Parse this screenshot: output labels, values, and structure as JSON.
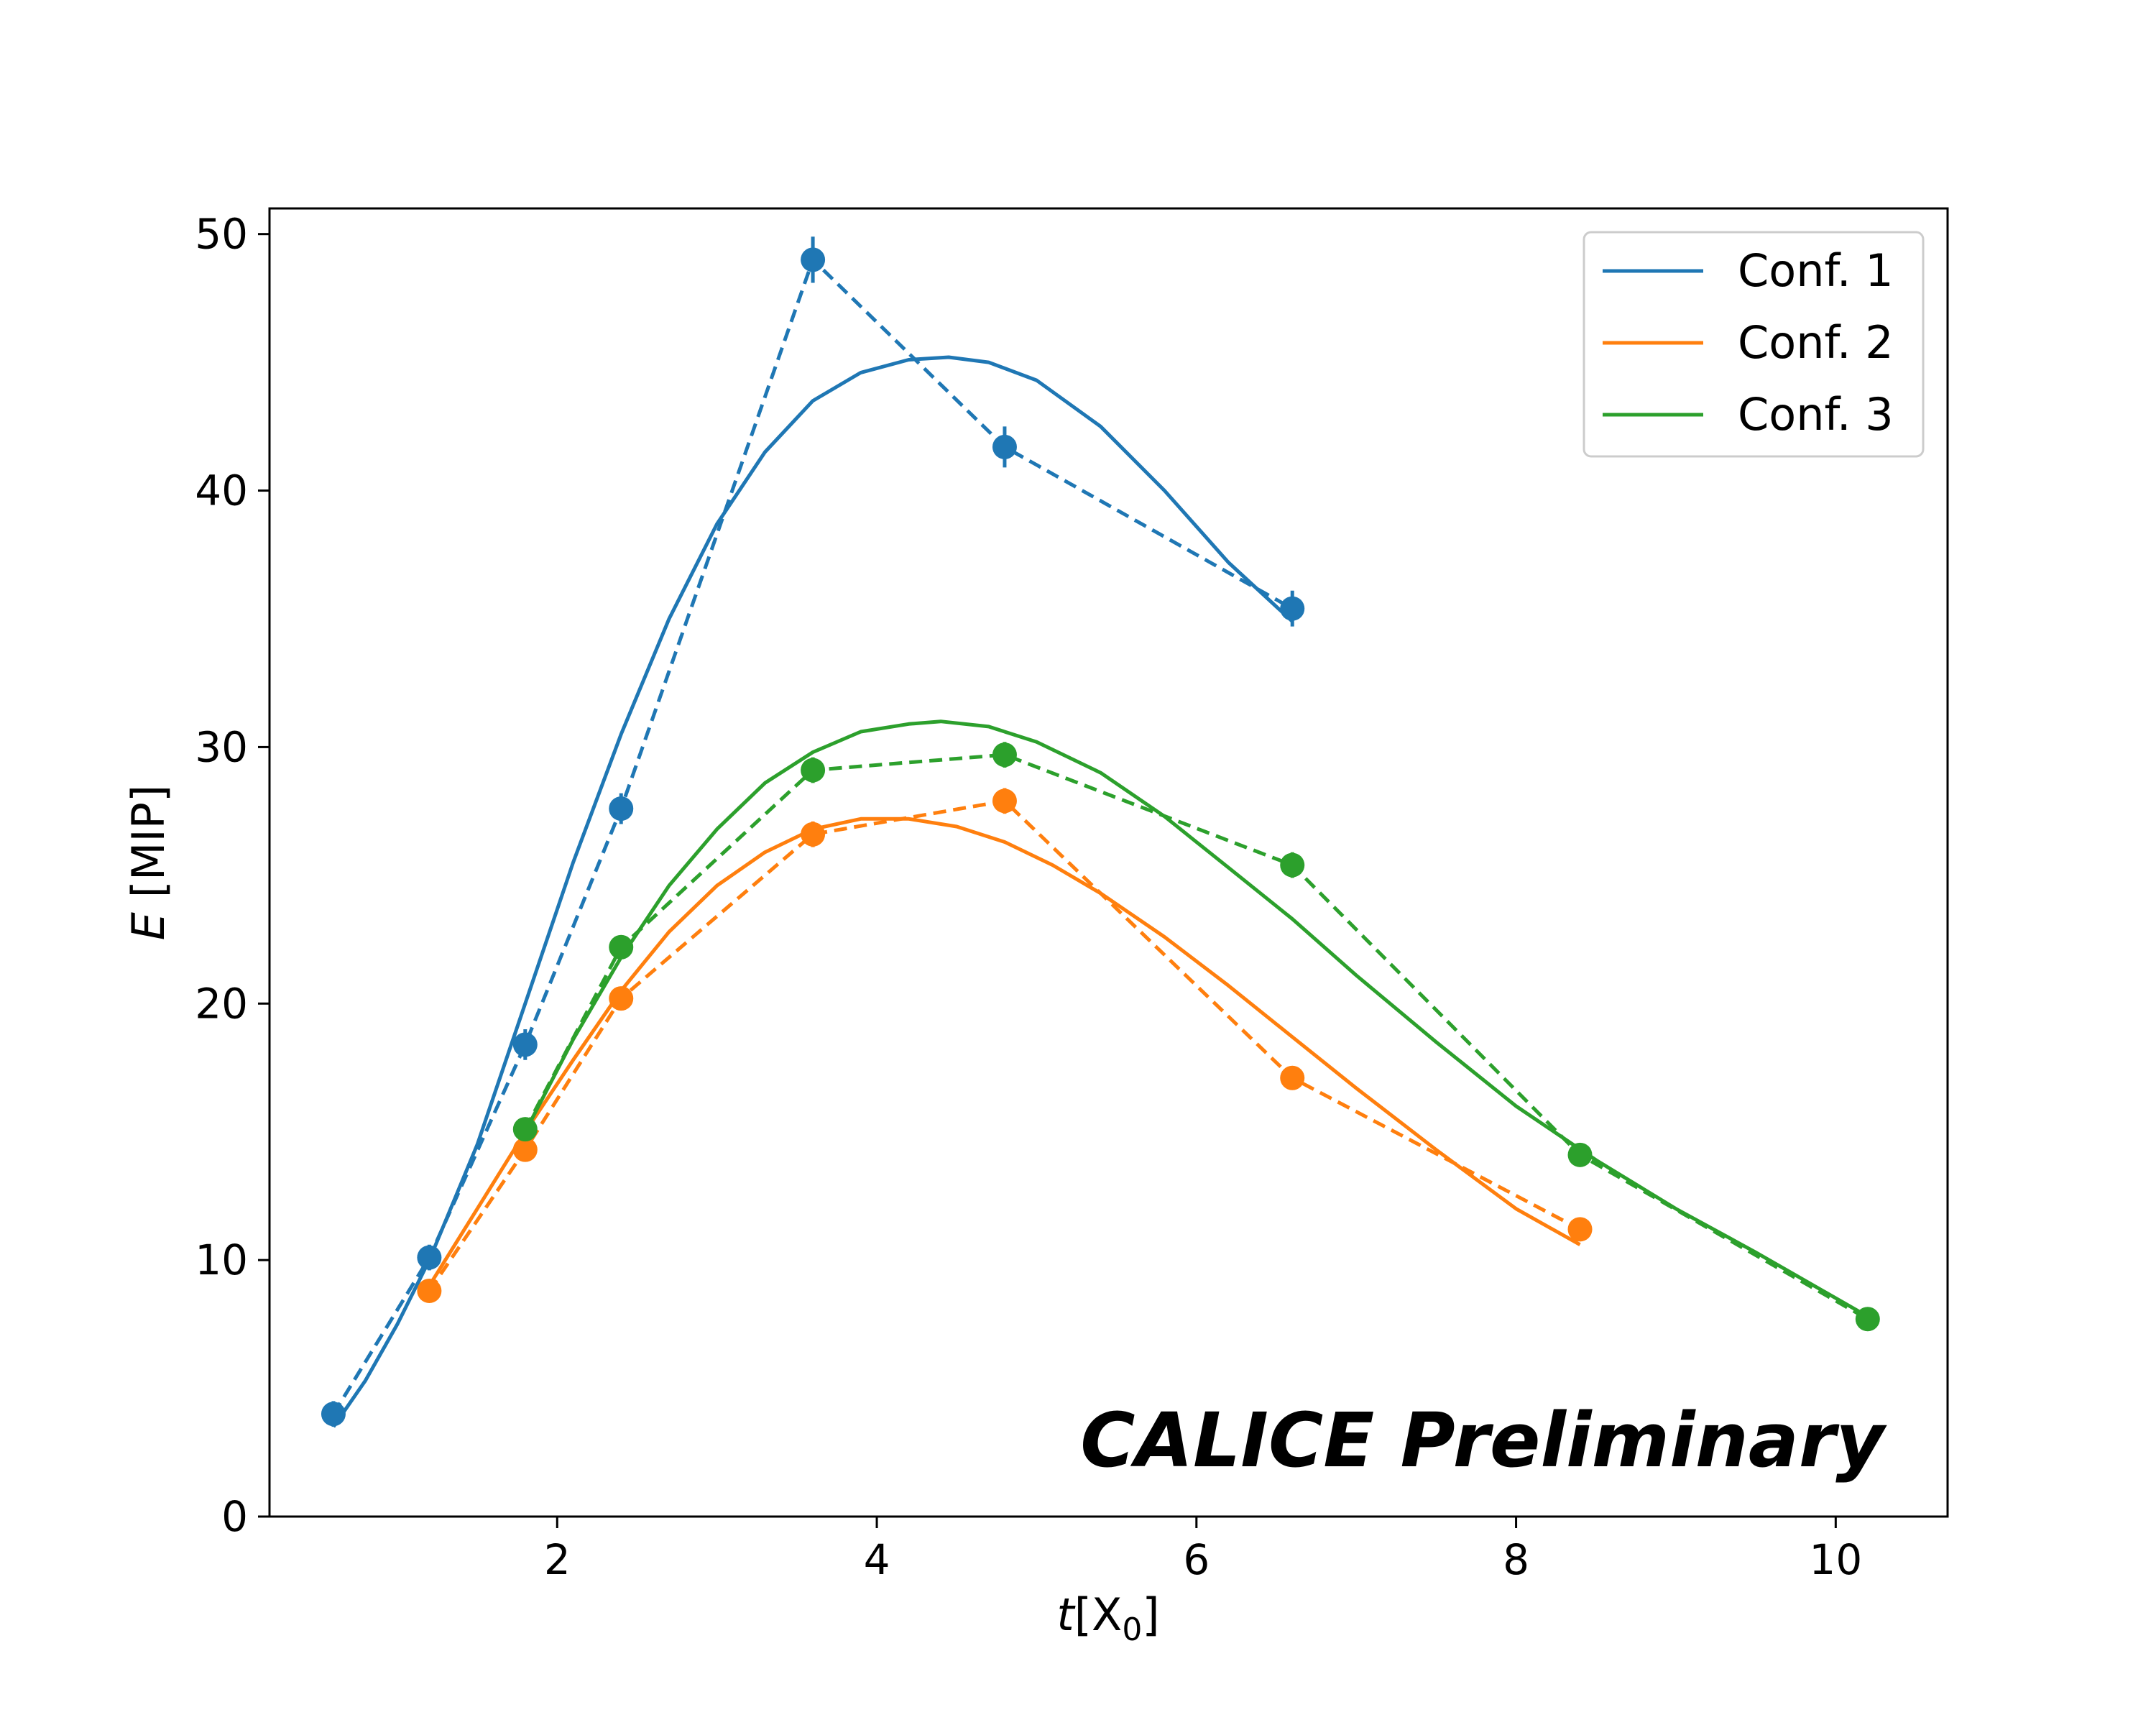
{
  "chart_data": {
    "type": "line",
    "title": "",
    "xlabel_italic": "t",
    "xlabel_rest": "[X",
    "xlabel_sub": "0",
    "xlabel_close": "]",
    "ylabel_italic": "E",
    "ylabel_rest": " [MIP]",
    "xlim": [
      0.2,
      10.7
    ],
    "ylim": [
      0,
      51
    ],
    "xticks": [
      2,
      4,
      6,
      8,
      10
    ],
    "xtick_labels": [
      "2",
      "4",
      "6",
      "8",
      "10"
    ],
    "yticks": [
      0,
      10,
      20,
      30,
      40,
      50
    ],
    "ytick_labels": [
      "0",
      "10",
      "20",
      "30",
      "40",
      "50"
    ],
    "legend_position": "top-right",
    "annotation": "CALICE Preliminary",
    "series": [
      {
        "name": "Conf. 1",
        "color": "#1f77b4",
        "data_x": [
          0.6,
          1.2,
          1.8,
          2.4,
          3.6,
          4.8,
          6.6
        ],
        "data_y": [
          4.0,
          10.1,
          18.4,
          27.6,
          49.0,
          41.7,
          35.4
        ],
        "errors": [
          0.5,
          0.5,
          0.6,
          0.6,
          0.9,
          0.8,
          0.7
        ],
        "fit_x": [
          0.6,
          0.8,
          1.0,
          1.2,
          1.5,
          1.8,
          2.1,
          2.4,
          2.7,
          3.0,
          3.3,
          3.6,
          3.9,
          4.2,
          4.45,
          4.7,
          5.0,
          5.4,
          5.8,
          6.2,
          6.6
        ],
        "fit_y": [
          3.5,
          5.3,
          7.5,
          10.0,
          14.5,
          20.0,
          25.5,
          30.5,
          35.0,
          38.7,
          41.5,
          43.5,
          44.6,
          45.1,
          45.2,
          45.0,
          44.3,
          42.5,
          40.0,
          37.2,
          34.9
        ]
      },
      {
        "name": "Conf. 2",
        "color": "#ff7f0e",
        "data_x": [
          1.2,
          1.8,
          2.4,
          3.6,
          4.8,
          6.6,
          8.4
        ],
        "data_y": [
          8.8,
          14.3,
          20.2,
          26.6,
          27.9,
          17.1,
          11.2
        ],
        "errors": [
          0.3,
          0.4,
          0.4,
          0.5,
          0.5,
          0.4,
          0.4
        ],
        "fit_x": [
          1.2,
          1.5,
          1.8,
          2.1,
          2.4,
          2.7,
          3.0,
          3.3,
          3.6,
          3.9,
          4.2,
          4.5,
          4.8,
          5.1,
          5.4,
          5.8,
          6.2,
          6.6,
          7.0,
          7.5,
          8.0,
          8.4
        ],
        "fit_y": [
          9.0,
          12.0,
          15.0,
          17.8,
          20.5,
          22.8,
          24.6,
          25.9,
          26.8,
          27.2,
          27.2,
          26.9,
          26.3,
          25.4,
          24.3,
          22.6,
          20.7,
          18.7,
          16.7,
          14.3,
          12.0,
          10.6
        ]
      },
      {
        "name": "Conf. 3",
        "color": "#2ca02c",
        "data_x": [
          1.8,
          2.4,
          3.6,
          4.8,
          6.6,
          8.4,
          10.2
        ],
        "data_y": [
          15.1,
          22.2,
          29.1,
          29.7,
          25.4,
          14.1,
          7.7
        ],
        "errors": [
          0.4,
          0.4,
          0.5,
          0.5,
          0.5,
          0.4,
          0.3
        ],
        "fit_x": [
          1.8,
          2.1,
          2.4,
          2.7,
          3.0,
          3.3,
          3.6,
          3.9,
          4.2,
          4.4,
          4.7,
          5.0,
          5.4,
          5.8,
          6.2,
          6.6,
          7.0,
          7.5,
          8.0,
          8.5,
          9.0,
          9.5,
          10.2
        ],
        "fit_y": [
          15.0,
          18.6,
          21.8,
          24.6,
          26.8,
          28.6,
          29.8,
          30.6,
          30.9,
          31.0,
          30.8,
          30.2,
          29.0,
          27.3,
          25.3,
          23.3,
          21.1,
          18.5,
          16.0,
          13.9,
          12.0,
          10.3,
          7.8
        ]
      }
    ]
  }
}
